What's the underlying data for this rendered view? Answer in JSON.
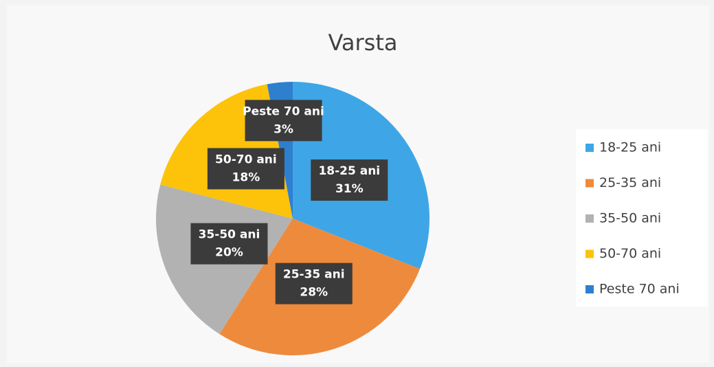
{
  "chart_data": {
    "type": "pie",
    "title": "Varsta",
    "categories": [
      "18-25 ani",
      "25-35 ani",
      "35-50 ani",
      "50-70 ani",
      "Peste 70 ani"
    ],
    "values": [
      31,
      28,
      20,
      18,
      3
    ],
    "value_labels": [
      "31%",
      "28%",
      "20%",
      "18%",
      "3%"
    ],
    "colors": [
      "#3ea6e6",
      "#ee8a3c",
      "#b2b2b2",
      "#fcc30a",
      "#2f7fcf"
    ],
    "legend": "right"
  }
}
